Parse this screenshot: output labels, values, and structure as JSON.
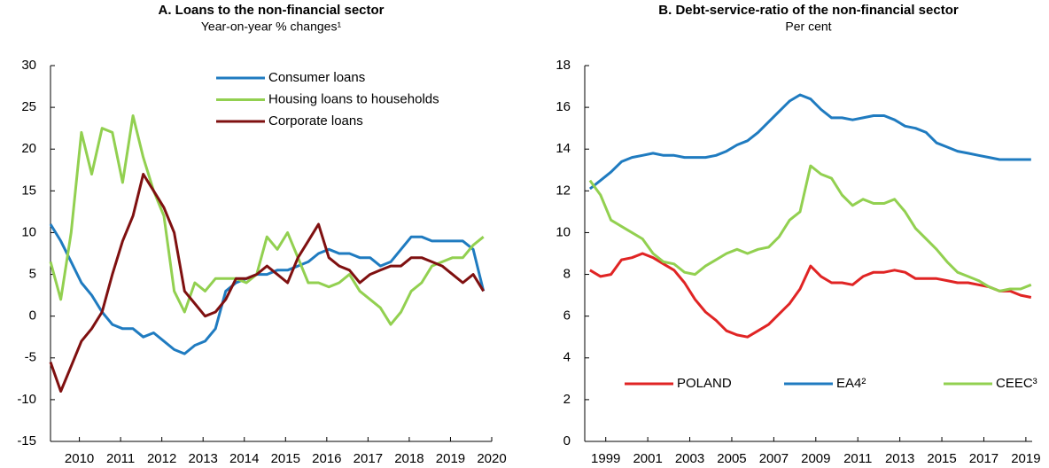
{
  "chart_data": [
    {
      "type": "line",
      "title": "A. Loans to the non-financial sector",
      "subtitle": "Year-on-year % changes¹",
      "x": [
        2009.3,
        2009.55,
        2009.8,
        2010.05,
        2010.3,
        2010.55,
        2010.8,
        2011.05,
        2011.3,
        2011.55,
        2011.8,
        2012.05,
        2012.3,
        2012.55,
        2012.8,
        2013.05,
        2013.3,
        2013.55,
        2013.8,
        2014.05,
        2014.3,
        2014.55,
        2014.8,
        2015.05,
        2015.3,
        2015.55,
        2015.8,
        2016.05,
        2016.3,
        2016.55,
        2016.8,
        2017.05,
        2017.3,
        2017.55,
        2017.8,
        2018.05,
        2018.3,
        2018.55,
        2018.8,
        2019.05,
        2019.3,
        2019.55,
        2019.8
      ],
      "series": [
        {
          "name": "Consumer loans",
          "color": "#1f7bc0",
          "values": [
            11,
            9,
            6.5,
            4,
            2.5,
            0.5,
            -1,
            -1.5,
            -1.5,
            -2.5,
            -2,
            -3,
            -4,
            -4.5,
            -3.5,
            -3,
            -1.5,
            3,
            4,
            4.5,
            5,
            5,
            5.5,
            5.5,
            6,
            6.5,
            7.5,
            8,
            7.5,
            7.5,
            7,
            7,
            6,
            6.5,
            8,
            9.5,
            9.5,
            9,
            9,
            9,
            9,
            8,
            3
          ]
        },
        {
          "name": "Housing loans to households",
          "color": "#92d050",
          "values": [
            6.5,
            2,
            10,
            22,
            17,
            22.5,
            22,
            16,
            24,
            19,
            15,
            12,
            3,
            0.5,
            4,
            3,
            4.5,
            4.5,
            4.5,
            4,
            5,
            9.5,
            8,
            10,
            7,
            4,
            4,
            3.5,
            4,
            5,
            3,
            2,
            1,
            -1,
            0.5,
            3,
            4,
            6,
            6.5,
            7,
            7,
            8.5,
            9.5
          ]
        },
        {
          "name": "Corporate loans",
          "color": "#7f1010",
          "values": [
            -5.5,
            -9,
            -6,
            -3,
            -1.5,
            0.5,
            5,
            9,
            12,
            17,
            15,
            13,
            10,
            3,
            1.5,
            0,
            0.5,
            2,
            4.5,
            4.5,
            5,
            6,
            5,
            4,
            7,
            9,
            11,
            7,
            6,
            5.5,
            4,
            5,
            5.5,
            6,
            6,
            7,
            7,
            6.5,
            6,
            5,
            4,
            5,
            3
          ]
        }
      ],
      "xlim": [
        2009.3,
        2020
      ],
      "xticks": [
        2010,
        2011,
        2012,
        2013,
        2014,
        2015,
        2016,
        2017,
        2018,
        2019,
        2020
      ],
      "ylim": [
        -15,
        30
      ],
      "yticks": [
        -15,
        -10,
        -5,
        0,
        5,
        10,
        15,
        20,
        25,
        30
      ],
      "legend": "top-center"
    },
    {
      "type": "line",
      "title": "B. Debt-service-ratio of the non-financial sector",
      "subtitle": "Per cent",
      "x": [
        1998.25,
        1998.75,
        1999.25,
        1999.75,
        2000.25,
        2000.75,
        2001.25,
        2001.75,
        2002.25,
        2002.75,
        2003.25,
        2003.75,
        2004.25,
        2004.75,
        2005.25,
        2005.75,
        2006.25,
        2006.75,
        2007.25,
        2007.75,
        2008.25,
        2008.75,
        2009.25,
        2009.75,
        2010.25,
        2010.75,
        2011.25,
        2011.75,
        2012.25,
        2012.75,
        2013.25,
        2013.75,
        2014.25,
        2014.75,
        2015.25,
        2015.75,
        2016.25,
        2016.75,
        2017.25,
        2017.75,
        2018.25,
        2018.75,
        2019.25
      ],
      "series": [
        {
          "name": "POLAND",
          "color": "#e02424",
          "values": [
            8.2,
            7.9,
            8.0,
            8.7,
            8.8,
            9.0,
            8.8,
            8.5,
            8.2,
            7.6,
            6.8,
            6.2,
            5.8,
            5.3,
            5.1,
            5.0,
            5.3,
            5.6,
            6.1,
            6.6,
            7.3,
            8.4,
            7.9,
            7.6,
            7.6,
            7.5,
            7.9,
            8.1,
            8.1,
            8.2,
            8.1,
            7.8,
            7.8,
            7.8,
            7.7,
            7.6,
            7.6,
            7.5,
            7.4,
            7.2,
            7.2,
            7.0,
            6.9
          ]
        },
        {
          "name": "EA4²",
          "color": "#1f7bc0",
          "values": [
            12.1,
            12.5,
            12.9,
            13.4,
            13.6,
            13.7,
            13.8,
            13.7,
            13.7,
            13.6,
            13.6,
            13.6,
            13.7,
            13.9,
            14.2,
            14.4,
            14.8,
            15.3,
            15.8,
            16.3,
            16.6,
            16.4,
            15.9,
            15.5,
            15.5,
            15.4,
            15.5,
            15.6,
            15.6,
            15.4,
            15.1,
            15.0,
            14.8,
            14.3,
            14.1,
            13.9,
            13.8,
            13.7,
            13.6,
            13.5,
            13.5,
            13.5,
            13.5
          ]
        },
        {
          "name": "CEEC³",
          "color": "#92d050",
          "values": [
            12.5,
            11.8,
            10.6,
            10.3,
            10.0,
            9.7,
            9.0,
            8.6,
            8.5,
            8.1,
            8.0,
            8.4,
            8.7,
            9.0,
            9.2,
            9.0,
            9.2,
            9.3,
            9.8,
            10.6,
            11.0,
            13.2,
            12.8,
            12.6,
            11.8,
            11.3,
            11.6,
            11.4,
            11.4,
            11.6,
            11.0,
            10.2,
            9.7,
            9.2,
            8.6,
            8.1,
            7.9,
            7.7,
            7.4,
            7.2,
            7.3,
            7.3,
            7.5
          ]
        }
      ],
      "xlim": [
        1998,
        2019.3
      ],
      "xticks": [
        1999,
        2001,
        2003,
        2005,
        2007,
        2009,
        2011,
        2013,
        2015,
        2017,
        2019
      ],
      "ylim": [
        0,
        18
      ],
      "yticks": [
        0,
        2,
        4,
        6,
        8,
        10,
        12,
        14,
        16,
        18
      ],
      "legend": "bottom"
    }
  ]
}
